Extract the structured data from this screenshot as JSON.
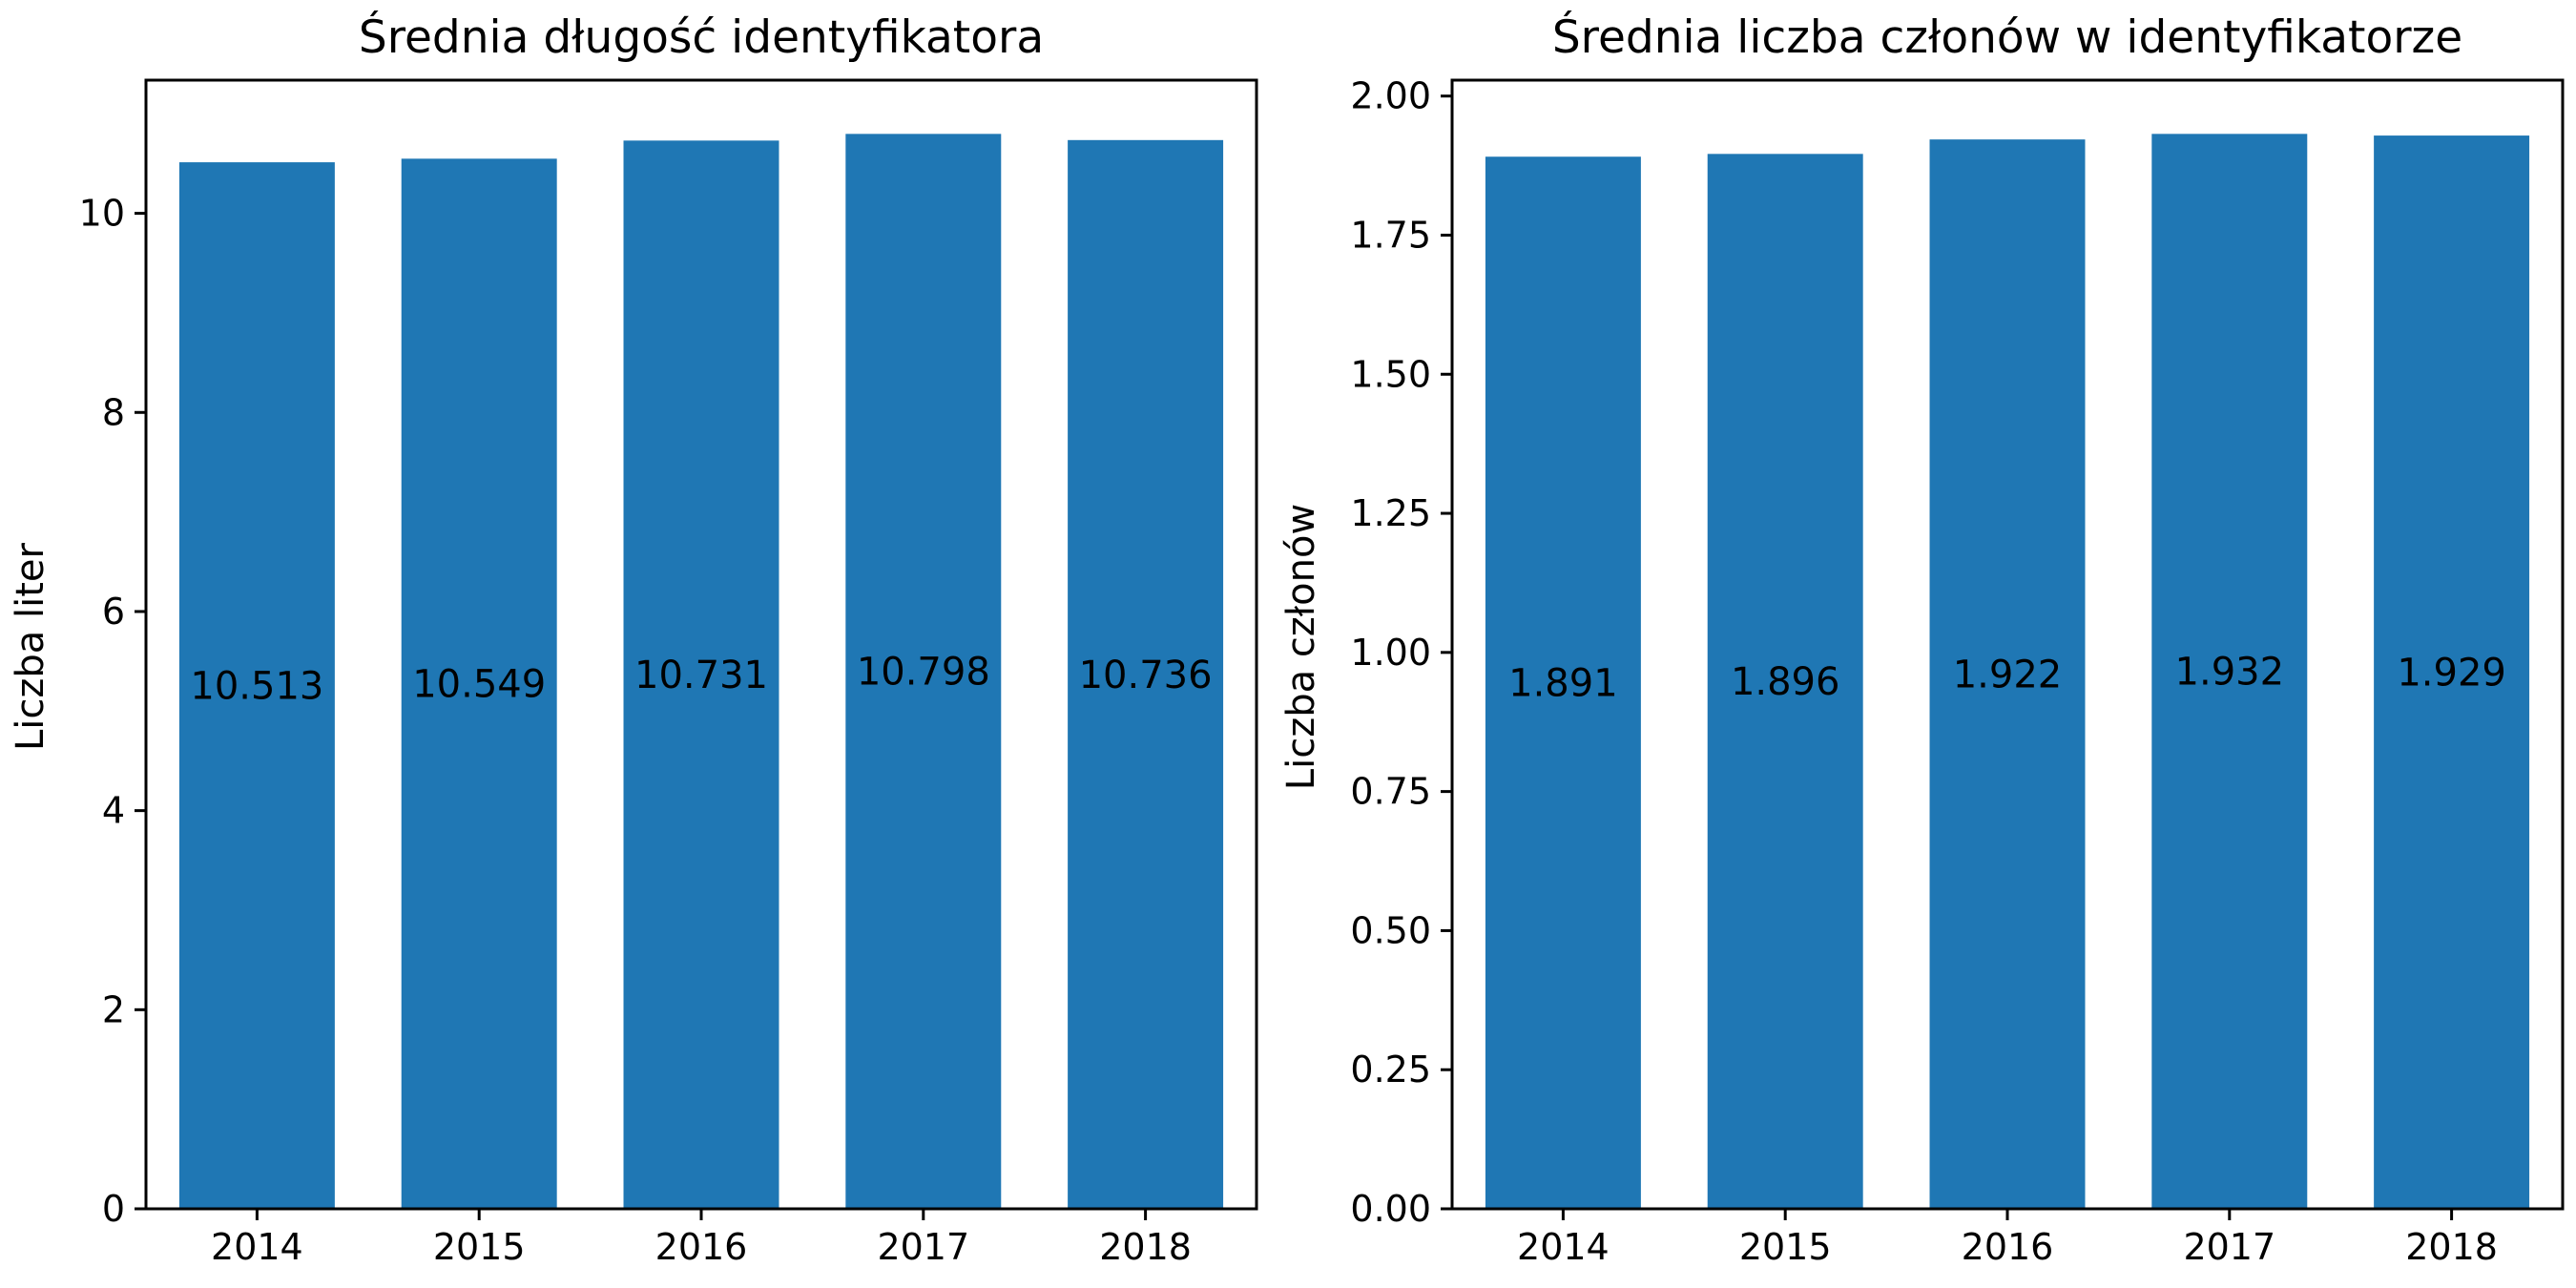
{
  "chart_data": [
    {
      "type": "bar",
      "title": "Średnia długość identyfikatora",
      "xlabel": "",
      "ylabel": "Liczba liter",
      "categories": [
        "2014",
        "2015",
        "2016",
        "2017",
        "2018"
      ],
      "values": [
        10.513,
        10.549,
        10.731,
        10.798,
        10.736
      ],
      "data_labels": [
        "10.513",
        "10.549",
        "10.731",
        "10.798",
        "10.736"
      ],
      "ylim": [
        0,
        11.338
      ],
      "yticks": [
        0,
        2,
        4,
        6,
        8,
        10
      ],
      "ytick_labels": [
        "0",
        "2",
        "4",
        "6",
        "8",
        "10"
      ],
      "bar_color": "#1f77b4",
      "grid": false,
      "legend": "none"
    },
    {
      "type": "bar",
      "title": "Średnia liczba członów w identyfikatorze",
      "xlabel": "",
      "ylabel": "Liczba członów",
      "categories": [
        "2014",
        "2015",
        "2016",
        "2017",
        "2018"
      ],
      "values": [
        1.891,
        1.896,
        1.922,
        1.932,
        1.929
      ],
      "data_labels": [
        "1.891",
        "1.896",
        "1.922",
        "1.932",
        "1.929"
      ],
      "ylim": [
        0,
        2.0286
      ],
      "yticks": [
        0,
        0.25,
        0.5,
        0.75,
        1.0,
        1.25,
        1.5,
        1.75,
        2.0
      ],
      "ytick_labels": [
        "0.00",
        "0.25",
        "0.50",
        "0.75",
        "1.00",
        "1.25",
        "1.50",
        "1.75",
        "2.00"
      ],
      "bar_color": "#1f77b4",
      "grid": false,
      "legend": "none"
    }
  ]
}
